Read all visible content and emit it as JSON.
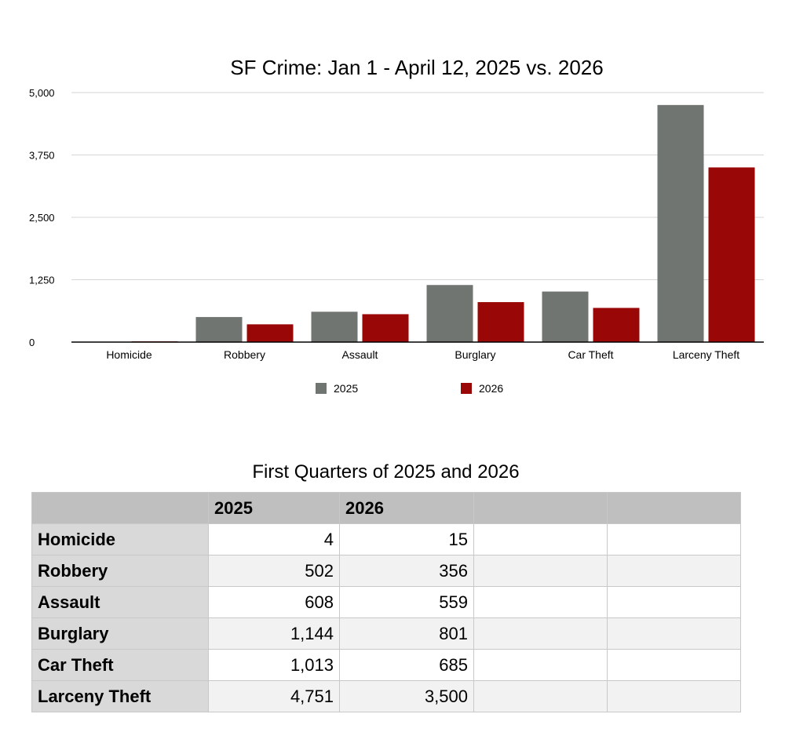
{
  "chart_data": {
    "type": "bar",
    "title": "SF Crime:  Jan 1 - April 12, 2025 vs. 2026",
    "categories": [
      "Homicide",
      "Robbery",
      "Assault",
      "Burglary",
      "Car Theft",
      "Larceny Theft"
    ],
    "series": [
      {
        "name": "2025",
        "color": "#717572",
        "values": [
          4,
          502,
          608,
          1144,
          1013,
          4751
        ]
      },
      {
        "name": "2026",
        "color": "#990807",
        "values": [
          15,
          356,
          559,
          801,
          685,
          3500
        ]
      }
    ],
    "ylim": [
      0,
      5000
    ],
    "yticks": [
      0,
      1250,
      2500,
      3750,
      5000
    ],
    "ytick_labels": [
      "0",
      "1,250",
      "2,500",
      "3,750",
      "5,000"
    ],
    "grid": true,
    "legend": "bottom-center",
    "xlabel": "",
    "ylabel": ""
  },
  "table": {
    "title": "First Quarters of 2025 and 2026",
    "headers": [
      "",
      "2025",
      "2026",
      "",
      ""
    ],
    "rows": [
      {
        "label": "Homicide",
        "v2025": "4",
        "v2026": "15"
      },
      {
        "label": "Robbery",
        "v2025": "502",
        "v2026": "356"
      },
      {
        "label": "Assault",
        "v2025": "608",
        "v2026": "559"
      },
      {
        "label": "Burglary",
        "v2025": "1,144",
        "v2026": "801"
      },
      {
        "label": "Car Theft",
        "v2025": "1,013",
        "v2026": "685"
      },
      {
        "label": "Larceny Theft",
        "v2025": "4,751",
        "v2026": "3,500"
      }
    ]
  }
}
